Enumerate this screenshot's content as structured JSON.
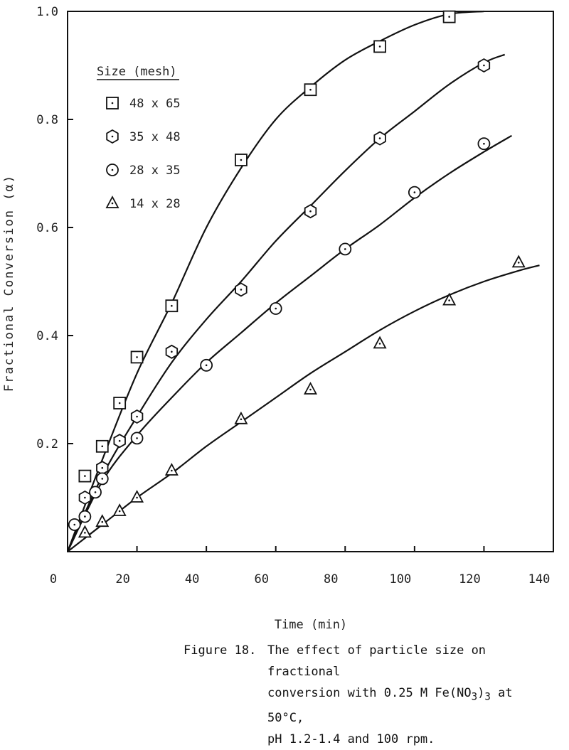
{
  "chart_data": {
    "type": "scatter",
    "xlabel": "Time (min)",
    "ylabel": "Fractional Conversion (α)",
    "xlim": [
      0,
      140
    ],
    "ylim": [
      0,
      1.0
    ],
    "x_ticks": [
      0,
      20,
      40,
      60,
      80,
      100,
      120,
      140
    ],
    "y_ticks": [
      0.2,
      0.4,
      0.6,
      0.8,
      1.0
    ],
    "x_tick_labels": [
      "0",
      "20",
      "40",
      "60",
      "80",
      "100",
      "120",
      "140"
    ],
    "y_tick_labels": [
      "0.2",
      "0.4",
      "0.6",
      "0.8",
      "1.0"
    ],
    "grid": false,
    "legend_title": "Size (mesh)",
    "legend_position": "top-left",
    "series": [
      {
        "name": "48 x 65",
        "marker": "square",
        "points": [
          [
            5,
            0.14
          ],
          [
            10,
            0.195
          ],
          [
            15,
            0.275
          ],
          [
            20,
            0.36
          ],
          [
            30,
            0.455
          ],
          [
            50,
            0.725
          ],
          [
            70,
            0.855
          ],
          [
            90,
            0.935
          ],
          [
            110,
            0.99
          ]
        ],
        "curve": [
          [
            0,
            0
          ],
          [
            10,
            0.17
          ],
          [
            20,
            0.33
          ],
          [
            30,
            0.46
          ],
          [
            40,
            0.6
          ],
          [
            50,
            0.71
          ],
          [
            60,
            0.8
          ],
          [
            70,
            0.86
          ],
          [
            80,
            0.91
          ],
          [
            90,
            0.945
          ],
          [
            100,
            0.975
          ],
          [
            110,
            0.995
          ],
          [
            120,
            1.0
          ]
        ]
      },
      {
        "name": "35 x 48",
        "marker": "hexagon",
        "points": [
          [
            5,
            0.1
          ],
          [
            10,
            0.155
          ],
          [
            15,
            0.205
          ],
          [
            20,
            0.25
          ],
          [
            30,
            0.37
          ],
          [
            50,
            0.485
          ],
          [
            70,
            0.63
          ],
          [
            90,
            0.765
          ],
          [
            120,
            0.9
          ]
        ],
        "curve": [
          [
            0,
            0
          ],
          [
            10,
            0.14
          ],
          [
            20,
            0.25
          ],
          [
            30,
            0.35
          ],
          [
            40,
            0.43
          ],
          [
            50,
            0.5
          ],
          [
            60,
            0.575
          ],
          [
            70,
            0.64
          ],
          [
            80,
            0.705
          ],
          [
            90,
            0.765
          ],
          [
            100,
            0.815
          ],
          [
            110,
            0.865
          ],
          [
            120,
            0.905
          ],
          [
            126,
            0.92
          ]
        ]
      },
      {
        "name": "28 x 35",
        "marker": "circle",
        "points": [
          [
            2,
            0.05
          ],
          [
            5,
            0.065
          ],
          [
            8,
            0.11
          ],
          [
            10,
            0.135
          ],
          [
            20,
            0.21
          ],
          [
            40,
            0.345
          ],
          [
            60,
            0.45
          ],
          [
            80,
            0.56
          ],
          [
            100,
            0.665
          ],
          [
            120,
            0.755
          ]
        ],
        "curve": [
          [
            0,
            0
          ],
          [
            10,
            0.13
          ],
          [
            20,
            0.215
          ],
          [
            30,
            0.285
          ],
          [
            40,
            0.35
          ],
          [
            50,
            0.405
          ],
          [
            60,
            0.46
          ],
          [
            70,
            0.51
          ],
          [
            80,
            0.56
          ],
          [
            90,
            0.605
          ],
          [
            100,
            0.655
          ],
          [
            110,
            0.7
          ],
          [
            120,
            0.74
          ],
          [
            128,
            0.77
          ]
        ]
      },
      {
        "name": "14 x 28",
        "marker": "triangle",
        "points": [
          [
            5,
            0.035
          ],
          [
            10,
            0.055
          ],
          [
            15,
            0.075
          ],
          [
            20,
            0.1
          ],
          [
            30,
            0.15
          ],
          [
            50,
            0.245
          ],
          [
            70,
            0.3
          ],
          [
            90,
            0.385
          ],
          [
            110,
            0.465
          ],
          [
            130,
            0.535
          ]
        ],
        "curve": [
          [
            0,
            0
          ],
          [
            10,
            0.05
          ],
          [
            20,
            0.1
          ],
          [
            30,
            0.145
          ],
          [
            40,
            0.195
          ],
          [
            50,
            0.24
          ],
          [
            60,
            0.285
          ],
          [
            70,
            0.33
          ],
          [
            80,
            0.37
          ],
          [
            90,
            0.41
          ],
          [
            100,
            0.445
          ],
          [
            110,
            0.475
          ],
          [
            120,
            0.5
          ],
          [
            130,
            0.52
          ],
          [
            136,
            0.53
          ]
        ]
      }
    ]
  },
  "caption": {
    "figure": "Figure 18.",
    "line1": "The effect of particle size on fractional",
    "line2_pre": "conversion with 0.25 M Fe(NO",
    "line2_sub1": "3",
    "line2_mid": ")",
    "line2_sub2": "3",
    "line2_post": " at 50°C,",
    "line3": "pH 1.2-1.4 and 100 rpm."
  }
}
